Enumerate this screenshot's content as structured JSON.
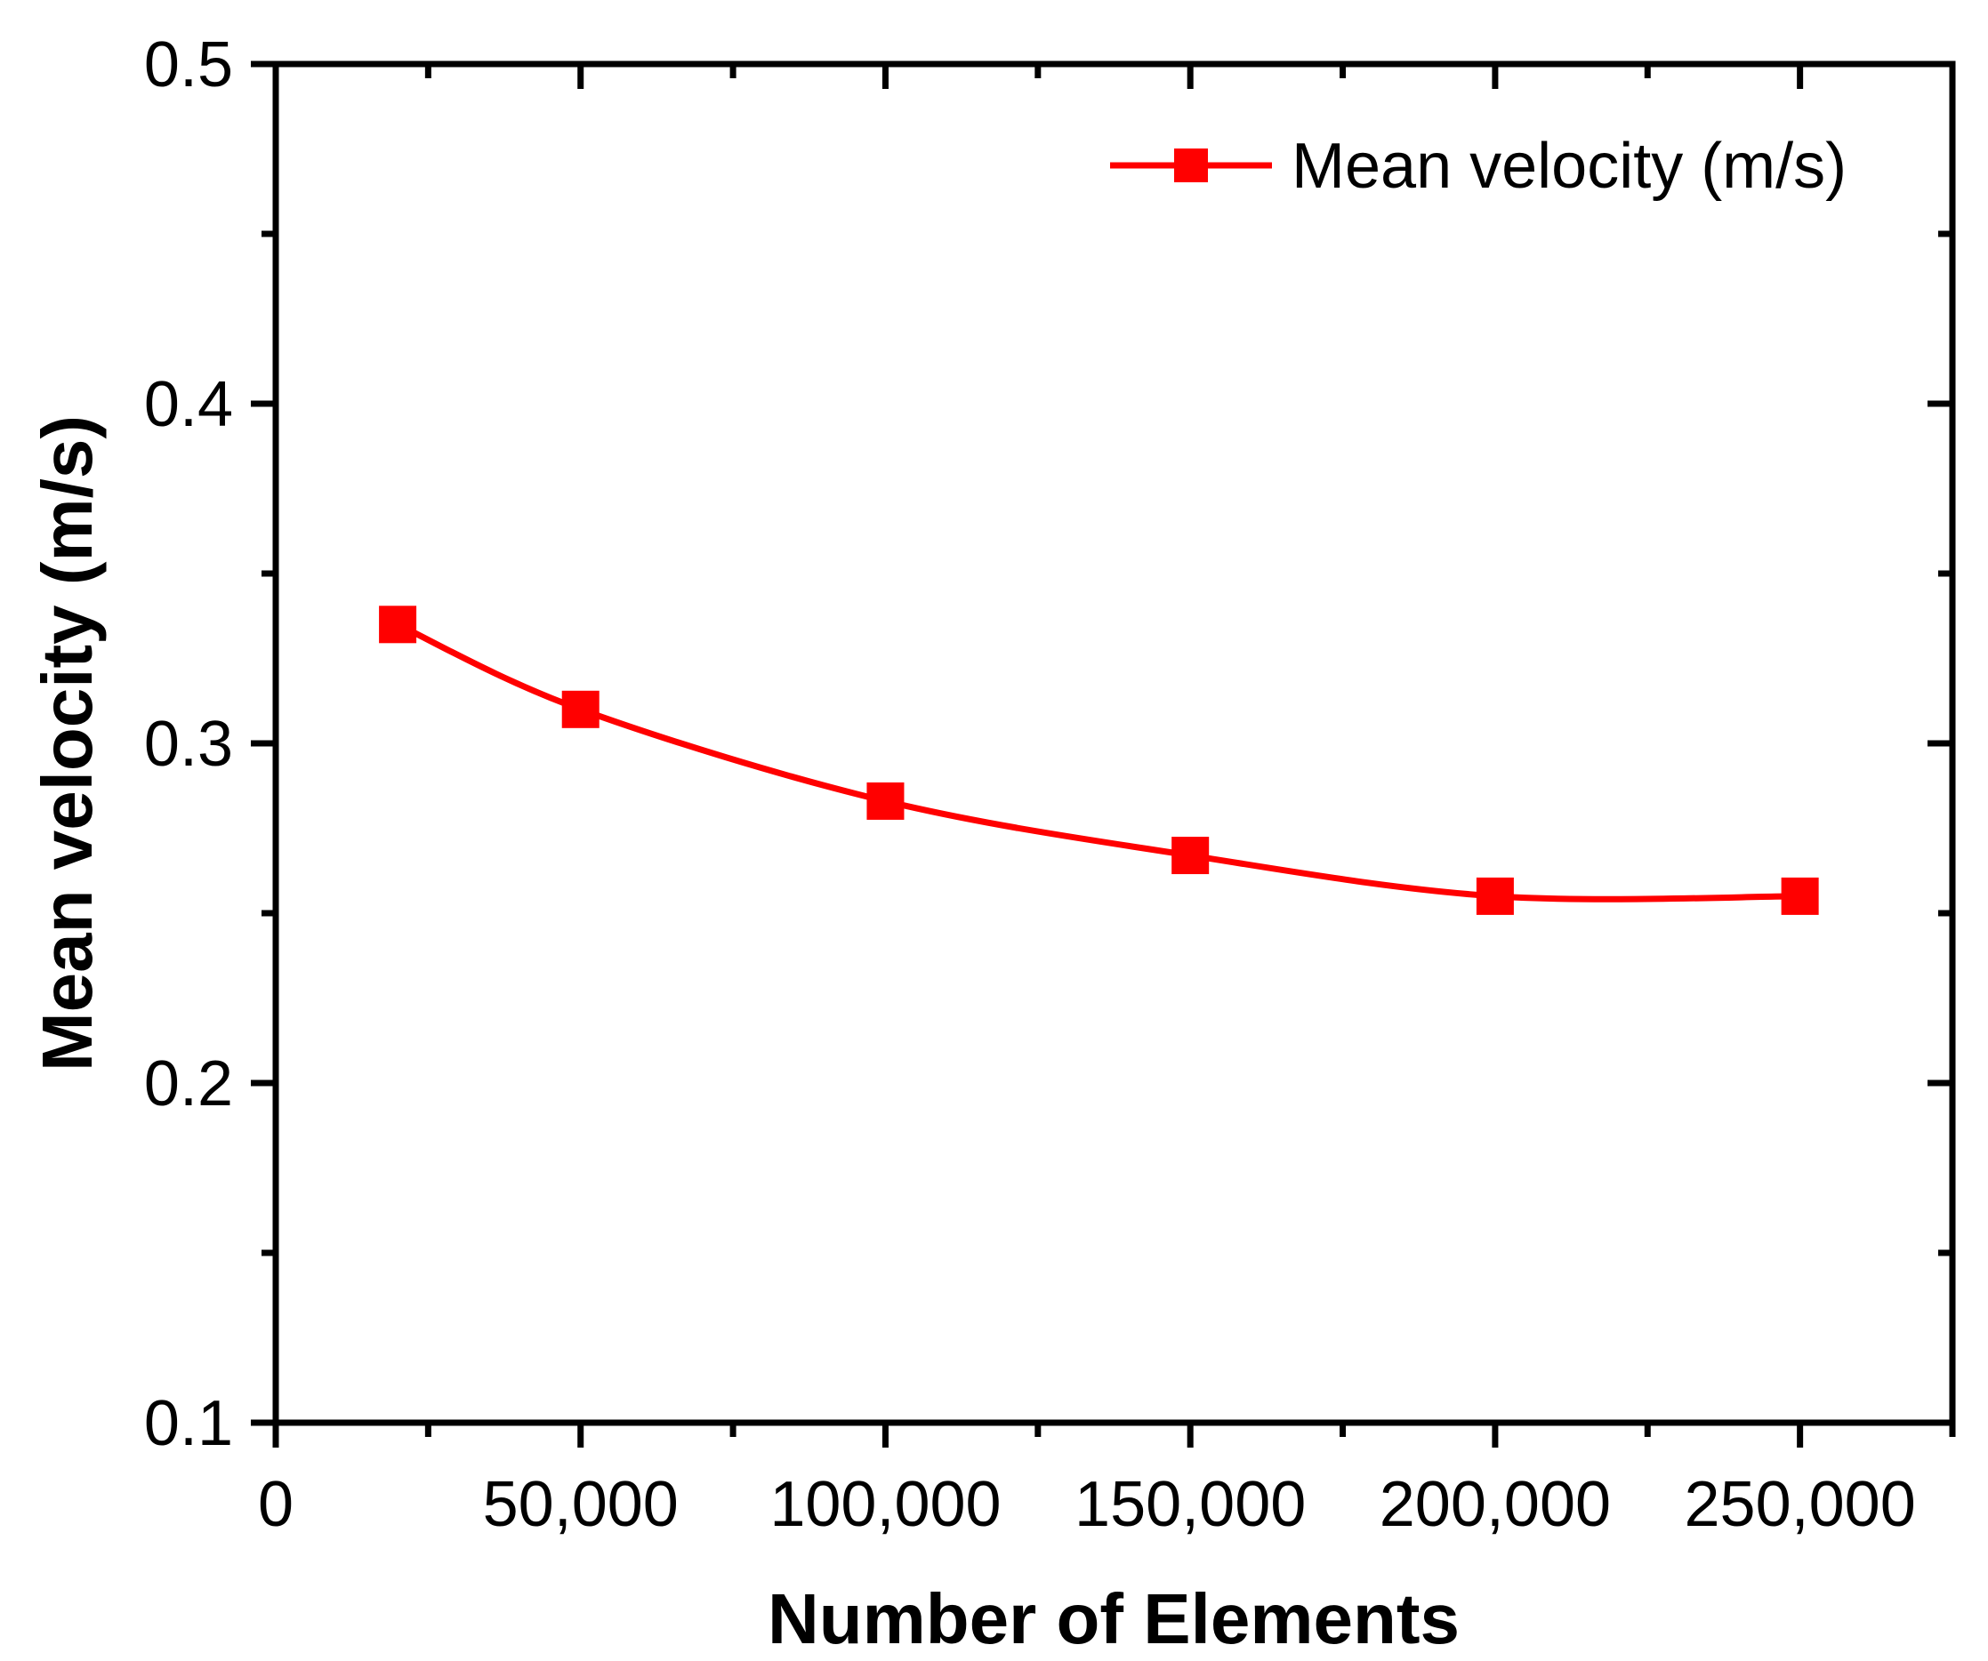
{
  "chart_data": {
    "type": "line",
    "title": "",
    "xlabel": "Number of Elements",
    "ylabel": "Mean velocity (m/s)",
    "xlim": [
      0,
      275000
    ],
    "ylim": [
      0.1,
      0.5
    ],
    "x_major_ticks": [
      0,
      50000,
      100000,
      150000,
      200000,
      250000
    ],
    "x_tick_labels": [
      "0",
      "50,000",
      "100,000",
      "150,000",
      "200,000",
      "250,000"
    ],
    "x_minor_ticks": [
      25000,
      75000,
      125000,
      175000,
      225000,
      275000
    ],
    "y_major_ticks": [
      0.1,
      0.2,
      0.3,
      0.4,
      0.5
    ],
    "y_tick_labels": [
      "0.1",
      "0.2",
      "0.3",
      "0.4",
      "0.5"
    ],
    "y_minor_ticks": [
      0.15,
      0.25,
      0.35,
      0.45
    ],
    "grid": false,
    "legend_position": "top-right",
    "series": [
      {
        "name": "Mean velocity (m/s)",
        "color": "#ff0000",
        "marker": "square",
        "x": [
          20000,
          50000,
          100000,
          150000,
          200000,
          250000
        ],
        "y": [
          0.335,
          0.31,
          0.283,
          0.267,
          0.255,
          0.255
        ]
      }
    ]
  }
}
